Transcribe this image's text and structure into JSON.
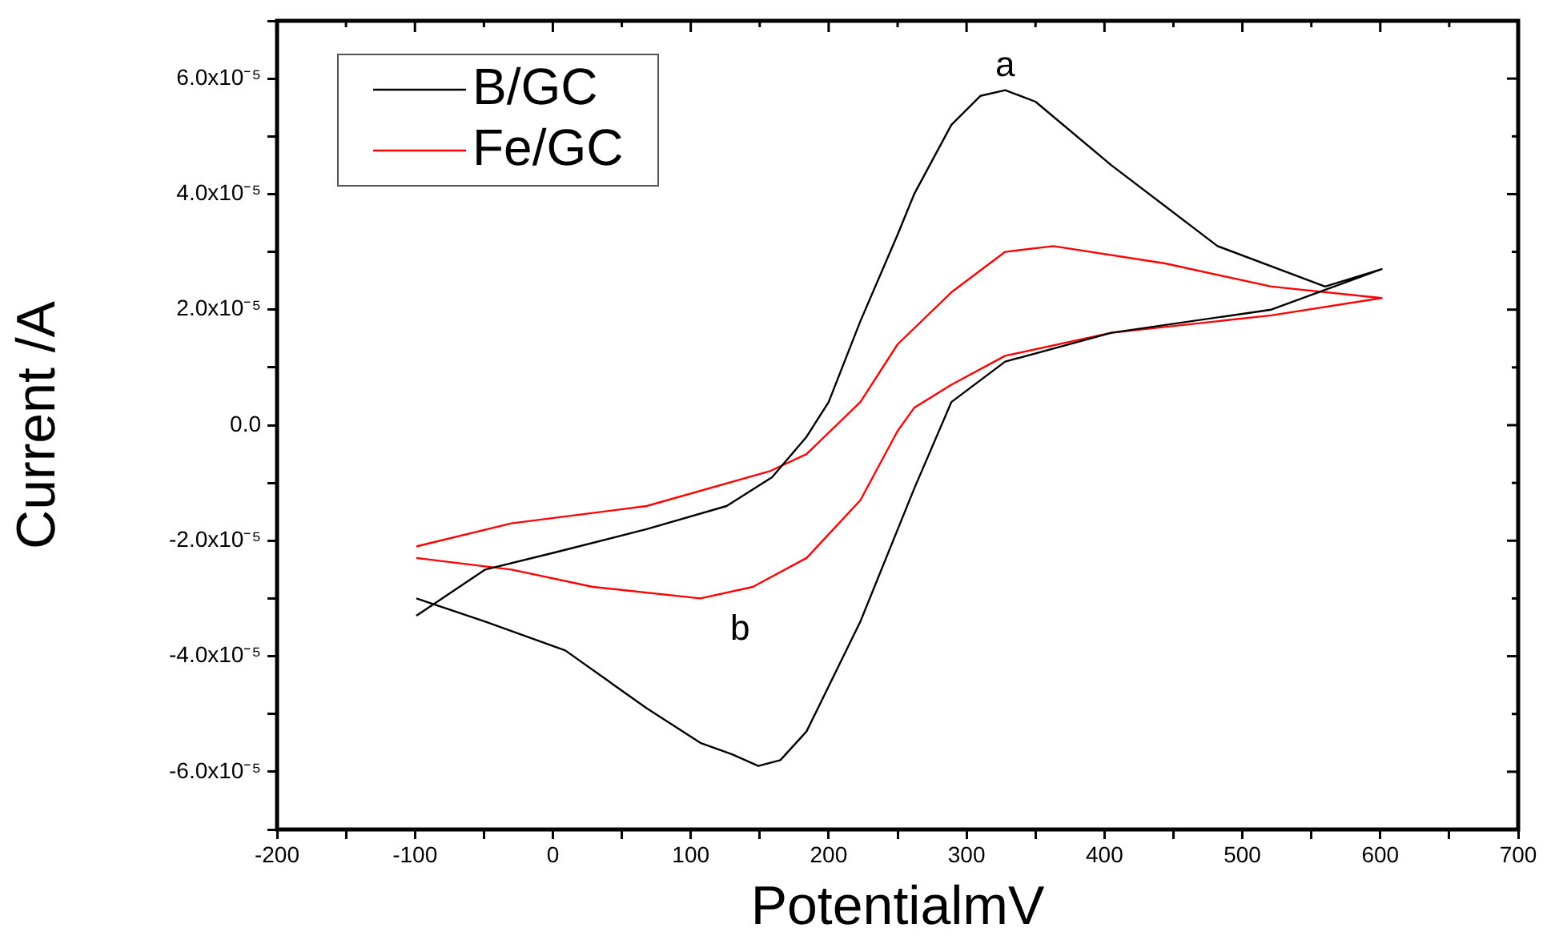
{
  "chart_data": {
    "type": "line",
    "xlabel": "PotentialmV",
    "ylabel": "Current /A",
    "xlim": [
      -200,
      700
    ],
    "xticks": [
      -200,
      {
        "value": -150,
        "label": null
      },
      -100,
      {
        "value": -50,
        "label": null
      },
      0,
      {
        "value": 50,
        "label": null
      },
      100,
      {
        "value": 150,
        "label": null
      },
      200,
      {
        "value": 250,
        "label": null
      },
      300,
      {
        "value": 350,
        "label": null
      },
      400,
      {
        "value": 450,
        "label": null
      },
      500,
      {
        "value": 550,
        "label": null
      },
      600,
      {
        "value": 650,
        "label": null
      },
      700
    ],
    "ylim": [
      -7e-05,
      7e-05
    ],
    "yticks": [
      {
        "value": -7e-05,
        "label": null
      },
      {
        "value": -6e-05,
        "label": "-6.0x10⁻⁵"
      },
      {
        "value": -5e-05,
        "label": null
      },
      {
        "value": -4e-05,
        "label": "-4.0x10⁻⁵"
      },
      {
        "value": -3e-05,
        "label": null
      },
      {
        "value": -2e-05,
        "label": "-2.0x10⁻⁵"
      },
      {
        "value": -1e-05,
        "label": null
      },
      {
        "value": 0,
        "label": "0.0"
      },
      {
        "value": 1e-05,
        "label": null
      },
      {
        "value": 2e-05,
        "label": "2.0x10⁻⁵"
      },
      {
        "value": 3e-05,
        "label": null
      },
      {
        "value": 4e-05,
        "label": "4.0x10⁻⁵"
      },
      {
        "value": 5e-05,
        "label": null
      },
      {
        "value": 6e-05,
        "label": "6.0x10⁻⁵"
      },
      {
        "value": 7e-05,
        "label": null
      }
    ],
    "grid": false,
    "legend": "top left",
    "marker": "none",
    "line_style": "solid",
    "annotations": [
      {
        "text": "a",
        "x": 328,
        "y": 5.8e-05
      },
      {
        "text": "b",
        "x": 145,
        "y": -2.8e-05
      }
    ],
    "series": [
      {
        "name": "B/GC",
        "color": "#000000",
        "x": [
          -99,
          -49,
          2,
          68,
          126,
          159,
          184,
          200,
          223,
          250,
          262,
          289,
          310,
          328,
          350,
          405,
          482,
          560,
          601,
          521,
          405,
          328,
          289,
          262,
          223,
          184,
          165,
          149,
          130,
          107,
          68,
          9,
          -49,
          -99
        ],
        "values": [
          -3.3e-05,
          -2.5e-05,
          -2.2e-05,
          -1.8e-05,
          -1.4e-05,
          -9e-06,
          -2e-06,
          4e-06,
          1.8e-05,
          3.3e-05,
          4e-05,
          5.2e-05,
          5.7e-05,
          5.8e-05,
          5.6e-05,
          4.5e-05,
          3.1e-05,
          2.4e-05,
          2.7e-05,
          2e-05,
          1.6e-05,
          1.1e-05,
          4e-06,
          -1.1e-05,
          -3.4e-05,
          -5.3e-05,
          -5.8e-05,
          -5.9e-05,
          -5.7e-05,
          -5.5e-05,
          -4.9e-05,
          -3.9e-05,
          -3.4e-05,
          -3e-05
        ]
      },
      {
        "name": "Fe/GC",
        "color": "#ff0000",
        "x": [
          -99,
          -30,
          68,
          157,
          184,
          223,
          250,
          289,
          328,
          363,
          444,
          521,
          601,
          521,
          405,
          328,
          289,
          262,
          250,
          223,
          184,
          145,
          107,
          29,
          -30,
          -99
        ],
        "values": [
          -2.1e-05,
          -1.7e-05,
          -1.4e-05,
          -8e-06,
          -5e-06,
          4e-06,
          1.4e-05,
          2.3e-05,
          3e-05,
          3.1e-05,
          2.8e-05,
          2.4e-05,
          2.2e-05,
          1.9e-05,
          1.6e-05,
          1.2e-05,
          7e-06,
          3e-06,
          -1e-06,
          -1.3e-05,
          -2.3e-05,
          -2.8e-05,
          -3e-05,
          -2.8e-05,
          -2.5e-05,
          -2.3e-05
        ]
      }
    ]
  }
}
